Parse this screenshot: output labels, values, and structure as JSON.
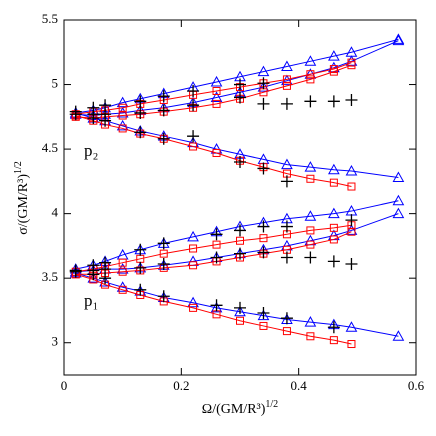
{
  "chart_data": {
    "type": "line",
    "xlabel": "Ω/(GM/R³)",
    "xlabel_exponent": "1/2",
    "ylabel": "σ/(GM/R³)",
    "ylabel_exponent": "1/2",
    "annotations": [
      "p₂",
      "p₁"
    ],
    "xlim": [
      0,
      0.6
    ],
    "ylim": [
      2.75,
      5.5
    ],
    "xticks": [
      0,
      0.2,
      0.4,
      0.6
    ],
    "yticks": [
      3,
      3.5,
      4,
      4.5,
      5,
      5.5
    ],
    "series": [
      {
        "color": "#0000ff",
        "marker": "triangle",
        "line": true,
        "x": [
          0.02,
          0.05,
          0.07,
          0.1,
          0.13,
          0.17,
          0.22,
          0.26,
          0.3,
          0.34,
          0.38,
          0.42,
          0.46,
          0.49,
          0.57
        ],
        "values": [
          4.78,
          4.8,
          4.82,
          4.86,
          4.89,
          4.93,
          4.98,
          5.02,
          5.06,
          5.1,
          5.14,
          5.18,
          5.22,
          5.25,
          5.35
        ]
      },
      {
        "color": "#0000ff",
        "marker": "triangle",
        "line": true,
        "x": [
          0.02,
          0.05,
          0.07,
          0.1,
          0.13,
          0.17,
          0.22,
          0.26,
          0.3,
          0.34,
          0.38,
          0.42,
          0.46,
          0.49,
          0.57
        ],
        "values": [
          4.77,
          4.76,
          4.77,
          4.78,
          4.8,
          4.82,
          4.86,
          4.9,
          4.94,
          4.98,
          5.03,
          5.08,
          5.13,
          5.18,
          5.34
        ]
      },
      {
        "color": "#0000ff",
        "marker": "triangle",
        "line": true,
        "x": [
          0.02,
          0.05,
          0.07,
          0.1,
          0.13,
          0.17,
          0.22,
          0.26,
          0.3,
          0.34,
          0.38,
          0.42,
          0.46,
          0.49,
          0.57
        ],
        "values": [
          4.78,
          4.74,
          4.72,
          4.68,
          4.64,
          4.6,
          4.55,
          4.5,
          4.46,
          4.42,
          4.38,
          4.36,
          4.34,
          4.33,
          4.28
        ]
      },
      {
        "color": "#ff0000",
        "marker": "square",
        "line": true,
        "x": [
          0.02,
          0.05,
          0.07,
          0.1,
          0.13,
          0.17,
          0.22,
          0.26,
          0.3,
          0.34,
          0.38,
          0.42,
          0.46,
          0.49
        ],
        "values": [
          4.77,
          4.79,
          4.8,
          4.82,
          4.85,
          4.88,
          4.92,
          4.95,
          4.98,
          5.01,
          5.04,
          5.08,
          5.12,
          5.17
        ]
      },
      {
        "color": "#ff0000",
        "marker": "square",
        "line": true,
        "x": [
          0.02,
          0.05,
          0.07,
          0.1,
          0.13,
          0.17,
          0.22,
          0.26,
          0.3,
          0.34,
          0.38,
          0.42,
          0.46,
          0.49
        ],
        "values": [
          4.75,
          4.74,
          4.75,
          4.76,
          4.77,
          4.79,
          4.82,
          4.85,
          4.89,
          4.94,
          4.99,
          5.04,
          5.1,
          5.15
        ]
      },
      {
        "color": "#ff0000",
        "marker": "square",
        "line": true,
        "x": [
          0.02,
          0.05,
          0.07,
          0.1,
          0.13,
          0.17,
          0.22,
          0.26,
          0.3,
          0.34,
          0.38,
          0.42,
          0.46,
          0.49
        ],
        "values": [
          4.76,
          4.72,
          4.69,
          4.66,
          4.62,
          4.58,
          4.52,
          4.47,
          4.41,
          4.36,
          4.31,
          4.27,
          4.24,
          4.21
        ]
      },
      {
        "color": "#000000",
        "marker": "plus",
        "line": false,
        "x": [
          0.02,
          0.05,
          0.07,
          0.02,
          0.05,
          0.07,
          0.05,
          0.07,
          0.13,
          0.13,
          0.13,
          0.17,
          0.17,
          0.17,
          0.22,
          0.22,
          0.22,
          0.3,
          0.3,
          0.3,
          0.34,
          0.34,
          0.34,
          0.38,
          0.38,
          0.42,
          0.46,
          0.49
        ],
        "values": [
          4.79,
          4.82,
          4.84,
          4.77,
          4.77,
          4.77,
          4.74,
          4.72,
          4.87,
          4.78,
          4.63,
          4.91,
          4.8,
          4.58,
          4.95,
          4.84,
          4.6,
          5.0,
          4.9,
          4.4,
          5.01,
          4.85,
          4.35,
          4.85,
          4.25,
          4.87,
          4.87,
          4.88
        ]
      },
      {
        "color": "#0000ff",
        "marker": "triangle",
        "line": true,
        "x": [
          0.02,
          0.05,
          0.07,
          0.1,
          0.13,
          0.17,
          0.22,
          0.26,
          0.3,
          0.34,
          0.38,
          0.42,
          0.46,
          0.49,
          0.57
        ],
        "values": [
          3.57,
          3.6,
          3.63,
          3.68,
          3.72,
          3.77,
          3.82,
          3.86,
          3.9,
          3.93,
          3.96,
          3.98,
          4.0,
          4.02,
          4.1
        ]
      },
      {
        "color": "#0000ff",
        "marker": "triangle",
        "line": true,
        "x": [
          0.02,
          0.05,
          0.07,
          0.1,
          0.13,
          0.17,
          0.22,
          0.26,
          0.3,
          0.34,
          0.38,
          0.42,
          0.46,
          0.49,
          0.57
        ],
        "values": [
          3.55,
          3.56,
          3.57,
          3.57,
          3.58,
          3.6,
          3.63,
          3.66,
          3.69,
          3.72,
          3.75,
          3.79,
          3.83,
          3.87,
          4.0
        ]
      },
      {
        "color": "#0000ff",
        "marker": "triangle",
        "line": true,
        "x": [
          0.02,
          0.05,
          0.07,
          0.1,
          0.13,
          0.17,
          0.22,
          0.26,
          0.3,
          0.34,
          0.38,
          0.42,
          0.46,
          0.49,
          0.57
        ],
        "values": [
          3.54,
          3.5,
          3.47,
          3.43,
          3.4,
          3.35,
          3.31,
          3.27,
          3.24,
          3.21,
          3.18,
          3.16,
          3.14,
          3.12,
          3.05
        ]
      },
      {
        "color": "#ff0000",
        "marker": "square",
        "line": true,
        "x": [
          0.02,
          0.05,
          0.07,
          0.1,
          0.13,
          0.17,
          0.22,
          0.26,
          0.3,
          0.34,
          0.38,
          0.42,
          0.46,
          0.49
        ],
        "values": [
          3.55,
          3.57,
          3.59,
          3.62,
          3.65,
          3.69,
          3.73,
          3.76,
          3.79,
          3.81,
          3.84,
          3.87,
          3.89,
          3.91
        ]
      },
      {
        "color": "#ff0000",
        "marker": "square",
        "line": true,
        "x": [
          0.02,
          0.05,
          0.07,
          0.1,
          0.13,
          0.17,
          0.22,
          0.26,
          0.3,
          0.34,
          0.38,
          0.42,
          0.46,
          0.49
        ],
        "values": [
          3.53,
          3.53,
          3.54,
          3.55,
          3.56,
          3.58,
          3.6,
          3.63,
          3.66,
          3.69,
          3.72,
          3.76,
          3.8,
          3.86
        ]
      },
      {
        "color": "#ff0000",
        "marker": "square",
        "line": true,
        "x": [
          0.02,
          0.05,
          0.07,
          0.1,
          0.13,
          0.17,
          0.22,
          0.26,
          0.3,
          0.34,
          0.38,
          0.42,
          0.46,
          0.49
        ],
        "values": [
          3.53,
          3.49,
          3.45,
          3.41,
          3.37,
          3.32,
          3.27,
          3.22,
          3.17,
          3.13,
          3.09,
          3.05,
          3.02,
          2.99
        ]
      },
      {
        "color": "#000000",
        "marker": "plus",
        "line": false,
        "x": [
          0.02,
          0.05,
          0.07,
          0.02,
          0.05,
          0.07,
          0.05,
          0.07,
          0.13,
          0.13,
          0.13,
          0.17,
          0.17,
          0.17,
          0.26,
          0.26,
          0.26,
          0.3,
          0.3,
          0.3,
          0.34,
          0.34,
          0.34,
          0.38,
          0.38,
          0.38,
          0.42,
          0.46,
          0.46,
          0.49,
          0.49
        ],
        "values": [
          3.56,
          3.6,
          3.62,
          3.55,
          3.56,
          3.57,
          3.53,
          3.5,
          3.72,
          3.58,
          3.41,
          3.77,
          3.61,
          3.36,
          3.84,
          3.66,
          3.29,
          3.87,
          3.69,
          3.27,
          3.9,
          3.7,
          3.23,
          3.9,
          3.66,
          3.19,
          3.66,
          3.63,
          3.12,
          3.61,
          3.95
        ]
      }
    ]
  }
}
